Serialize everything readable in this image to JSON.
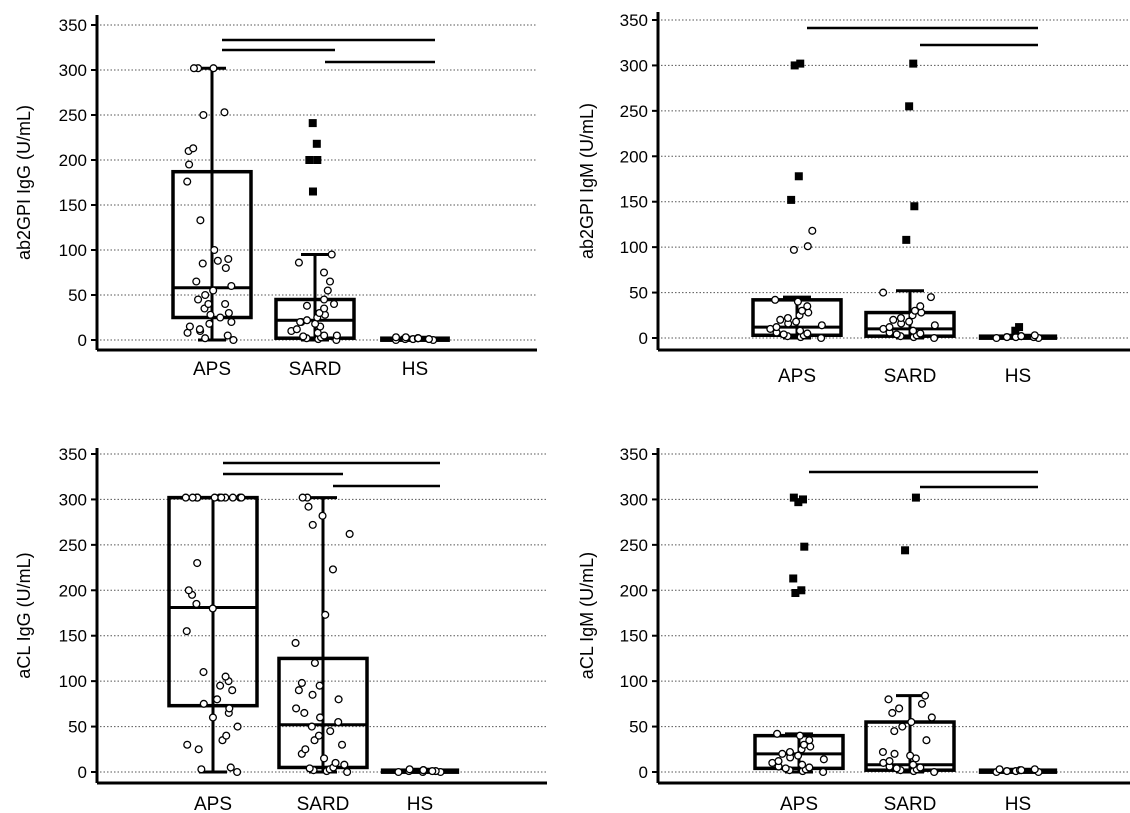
{
  "colors": {
    "ink": "#000000",
    "grid": "#555555",
    "background": "#ffffff"
  },
  "chart_data": [
    {
      "type": "box",
      "ylabel": "ab2GPI IgG (U/mL)",
      "ylim": [
        0,
        350
      ],
      "yticks": [
        0,
        50,
        100,
        150,
        200,
        250,
        300,
        350
      ],
      "grid": "horizontal dotted",
      "categories": [
        "APS",
        "SARD",
        "HS"
      ],
      "boxes": [
        {
          "category": "APS",
          "whisker_low": 0,
          "q1": 25,
          "median": 58,
          "q3": 187,
          "whisker_high": 302,
          "points": [
            0,
            2,
            5,
            8,
            10,
            12,
            15,
            18,
            20,
            25,
            28,
            30,
            35,
            40,
            40,
            45,
            50,
            55,
            60,
            65,
            80,
            85,
            88,
            90,
            100,
            133,
            176,
            195,
            210,
            213,
            250,
            253,
            302,
            302,
            302
          ],
          "outliers": []
        },
        {
          "category": "SARD",
          "whisker_low": 0,
          "q1": 2,
          "median": 22,
          "q3": 45,
          "whisker_high": 95,
          "points": [
            0,
            1,
            2,
            3,
            4,
            5,
            5,
            8,
            10,
            12,
            15,
            18,
            20,
            20,
            22,
            25,
            28,
            30,
            35,
            38,
            40,
            45,
            55,
            65,
            75,
            86,
            95
          ],
          "outliers": [
            165,
            200,
            200,
            218,
            241
          ]
        },
        {
          "category": "HS",
          "whisker_low": 0,
          "q1": 0,
          "median": 1,
          "q3": 2,
          "whisker_high": 3,
          "points": [
            0,
            0,
            1,
            1,
            1,
            2,
            2,
            2,
            3,
            3
          ],
          "outliers": []
        }
      ],
      "significance_bars": [
        [
          "APS",
          "SARD"
        ],
        [
          "APS",
          "HS"
        ],
        [
          "SARD",
          "HS"
        ]
      ]
    },
    {
      "type": "box",
      "ylabel": "ab2GPI IgM (U/mL)",
      "ylim": [
        0,
        350
      ],
      "yticks": [
        0,
        50,
        100,
        150,
        200,
        250,
        300,
        350
      ],
      "grid": "horizontal dotted",
      "categories": [
        "APS",
        "SARD",
        "HS"
      ],
      "boxes": [
        {
          "category": "APS",
          "whisker_low": 0,
          "q1": 3,
          "median": 12,
          "q3": 42,
          "whisker_high": 45,
          "points": [
            0,
            1,
            2,
            3,
            4,
            5,
            6,
            8,
            10,
            12,
            14,
            16,
            18,
            20,
            22,
            25,
            28,
            30,
            35,
            40,
            42,
            97,
            101,
            118
          ],
          "outliers": [
            152,
            178,
            300,
            302
          ]
        },
        {
          "category": "SARD",
          "whisker_low": 0,
          "q1": 2,
          "median": 10,
          "q3": 28,
          "whisker_high": 52,
          "points": [
            0,
            1,
            2,
            3,
            4,
            5,
            6,
            8,
            10,
            12,
            14,
            16,
            18,
            20,
            22,
            25,
            28,
            30,
            35,
            45,
            50
          ],
          "outliers": [
            108,
            145,
            255,
            302
          ]
        },
        {
          "category": "HS",
          "whisker_low": 0,
          "q1": 0,
          "median": 1,
          "q3": 2,
          "whisker_high": 3,
          "points": [
            0,
            0,
            1,
            1,
            1,
            2,
            2,
            3
          ],
          "outliers": [
            8,
            12
          ]
        }
      ],
      "significance_bars": [
        [
          "APS",
          "HS"
        ],
        [
          "SARD",
          "HS"
        ]
      ]
    },
    {
      "type": "box",
      "ylabel": "aCL IgG (U/mL)",
      "ylim": [
        0,
        350
      ],
      "yticks": [
        0,
        50,
        100,
        150,
        200,
        250,
        300,
        350
      ],
      "grid": "horizontal dotted",
      "categories": [
        "APS",
        "SARD",
        "HS"
      ],
      "boxes": [
        {
          "category": "APS",
          "whisker_low": 0,
          "q1": 73,
          "median": 181,
          "q3": 302,
          "whisker_high": 302,
          "points": [
            0,
            3,
            5,
            25,
            30,
            35,
            40,
            50,
            60,
            65,
            70,
            75,
            80,
            90,
            95,
            100,
            105,
            110,
            155,
            180,
            185,
            195,
            200,
            230,
            302,
            302,
            302,
            302,
            302,
            302,
            302,
            302,
            302,
            302,
            302,
            302
          ],
          "outliers": []
        },
        {
          "category": "SARD",
          "whisker_low": 0,
          "q1": 5,
          "median": 52,
          "q3": 125,
          "whisker_high": 302,
          "points": [
            0,
            1,
            2,
            3,
            4,
            5,
            8,
            10,
            15,
            20,
            25,
            30,
            35,
            40,
            45,
            50,
            55,
            60,
            65,
            70,
            80,
            85,
            90,
            95,
            98,
            120,
            142,
            173,
            223,
            262,
            272,
            282,
            292,
            302,
            302
          ],
          "outliers": []
        },
        {
          "category": "HS",
          "whisker_low": 0,
          "q1": 0,
          "median": 1,
          "q3": 2,
          "whisker_high": 3,
          "points": [
            0,
            0,
            0,
            1,
            1,
            1,
            2,
            2,
            2,
            3
          ],
          "outliers": []
        }
      ],
      "significance_bars": [
        [
          "APS",
          "SARD"
        ],
        [
          "APS",
          "HS"
        ],
        [
          "SARD",
          "HS"
        ]
      ]
    },
    {
      "type": "box",
      "ylabel": "aCL IgM (U/mL)",
      "ylim": [
        0,
        350
      ],
      "yticks": [
        0,
        50,
        100,
        150,
        200,
        250,
        300,
        350
      ],
      "grid": "horizontal dotted",
      "categories": [
        "APS",
        "SARD",
        "HS"
      ],
      "boxes": [
        {
          "category": "APS",
          "whisker_low": 0,
          "q1": 4,
          "median": 20,
          "q3": 40,
          "whisker_high": 42,
          "points": [
            0,
            1,
            2,
            3,
            4,
            5,
            6,
            8,
            10,
            12,
            14,
            16,
            18,
            20,
            22,
            25,
            28,
            30,
            35,
            40,
            42
          ],
          "outliers": [
            197,
            200,
            213,
            248,
            297,
            300,
            302
          ]
        },
        {
          "category": "SARD",
          "whisker_low": 0,
          "q1": 2,
          "median": 8,
          "q3": 55,
          "whisker_high": 84,
          "points": [
            0,
            1,
            2,
            3,
            4,
            5,
            6,
            8,
            10,
            12,
            15,
            18,
            20,
            22,
            35,
            45,
            50,
            55,
            60,
            65,
            70,
            75,
            80,
            84
          ],
          "outliers": [
            244,
            302
          ]
        },
        {
          "category": "HS",
          "whisker_low": 0,
          "q1": 0,
          "median": 1,
          "q3": 2,
          "whisker_high": 3,
          "points": [
            0,
            0,
            1,
            1,
            2,
            2,
            3,
            3
          ],
          "outliers": []
        }
      ],
      "significance_bars": [
        [
          "APS",
          "HS"
        ],
        [
          "SARD",
          "HS"
        ]
      ]
    }
  ]
}
